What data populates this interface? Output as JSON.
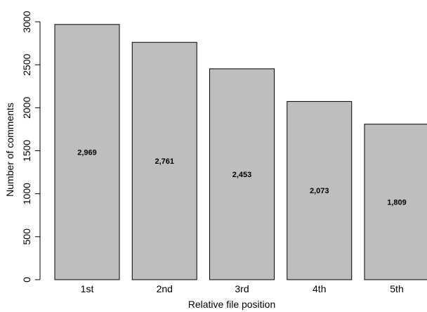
{
  "chart_data": {
    "type": "bar",
    "categories": [
      "1st",
      "2nd",
      "3rd",
      "4th",
      "5th"
    ],
    "values": [
      2969,
      2761,
      2453,
      2073,
      1809
    ],
    "data_labels": [
      "2,969",
      "2,761",
      "2,453",
      "2,073",
      "1,809"
    ],
    "title": "",
    "xlabel": "Relative file position",
    "ylabel": "Number of comments",
    "ylim": [
      0,
      3000
    ],
    "yticks": [
      0,
      500,
      1000,
      1500,
      2000,
      2500,
      3000
    ],
    "ytick_labels": [
      "0",
      "500",
      "1000",
      "1500",
      "2000",
      "2500",
      "3000"
    ],
    "grid": false,
    "bar_color": "#bebebe"
  }
}
